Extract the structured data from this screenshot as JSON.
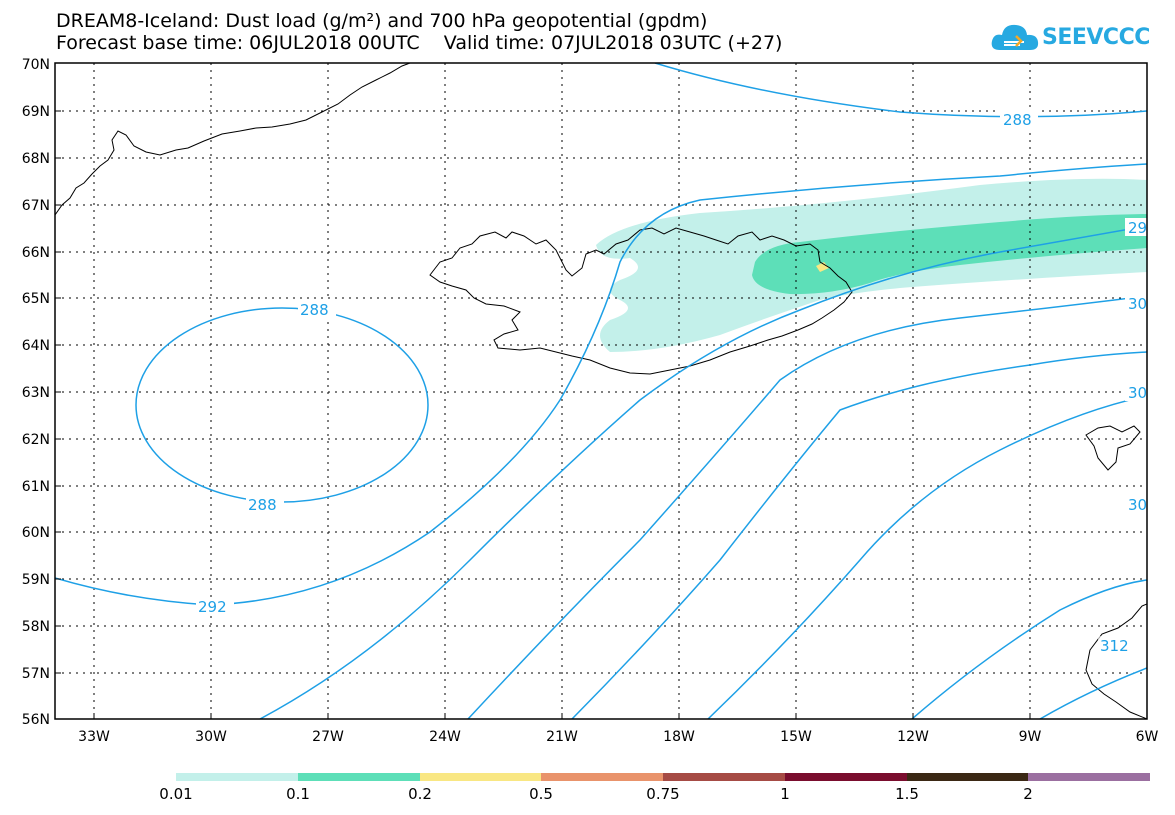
{
  "header": {
    "title_line1": "DREAM8-Iceland: Dust load (g/m²) and 700 hPa geopotential (gpdm)",
    "title_line2": "Forecast base time: 06JUL2018 00UTC    Valid time: 07JUL2018 03UTC (+27)"
  },
  "logo": {
    "text": "SEEVCCC",
    "icon": "cloud-icon",
    "color": "#27a9e1"
  },
  "map": {
    "lat_labels": [
      "70N",
      "69N",
      "68N",
      "67N",
      "66N",
      "65N",
      "64N",
      "63N",
      "62N",
      "61N",
      "60N",
      "59N",
      "58N",
      "57N",
      "56N"
    ],
    "lon_labels": [
      "33W",
      "30W",
      "27W",
      "24W",
      "21W",
      "18W",
      "15W",
      "12W",
      "9W",
      "6W"
    ],
    "contour_labels": [
      "288",
      "288",
      "288",
      "292",
      "29",
      "30",
      "30",
      "30",
      "312"
    ],
    "contour_color": "#1ea0e6"
  },
  "colorbar": {
    "colors": [
      "#c3f0ea",
      "#5ddfb8",
      "#f9e783",
      "#e9936b",
      "#a64b45",
      "#7a0d2e",
      "#3b2814",
      "#9b6fa0"
    ],
    "labels": [
      "0.01",
      "0.1",
      "0.2",
      "0.5",
      "0.75",
      "1",
      "1.5",
      "2"
    ]
  }
}
